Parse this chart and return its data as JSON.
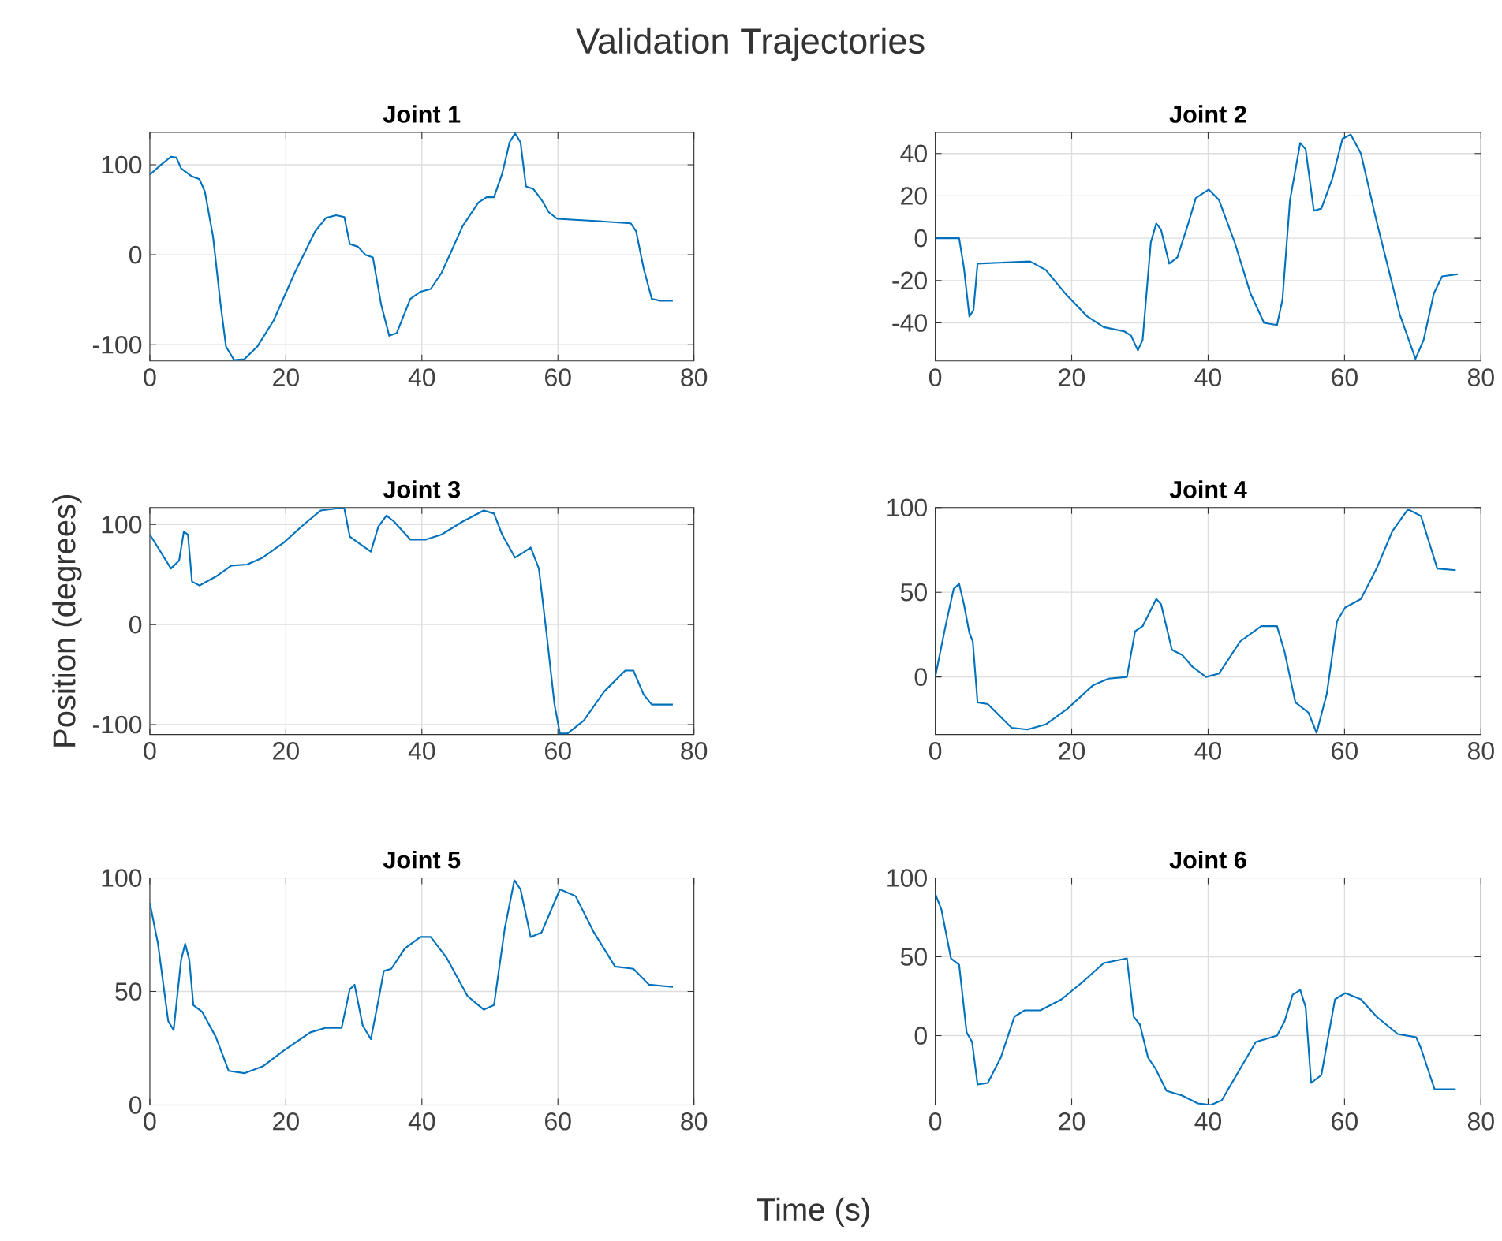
{
  "chart_data": [
    {
      "type": "line",
      "title": "Joint  1",
      "annotations": [
        "Validation Trajectories"
      ],
      "xlim": [
        0,
        80
      ],
      "xticks": [
        0,
        20,
        40,
        60,
        80
      ],
      "ylim": [
        -118,
        136
      ],
      "yticks": [
        -100,
        0,
        100
      ],
      "grid": true,
      "series": [
        {
          "color": "#0072bd",
          "x": [
            0,
            1.5,
            3.1,
            3.9,
            4.6,
            6.2,
            7.3,
            8.1,
            9.3,
            10.4,
            11.2,
            12.4,
            13.9,
            15.8,
            18.2,
            21.3,
            24.3,
            25.9,
            27.4,
            28.6,
            29.4,
            30.6,
            31.7,
            32.8,
            34,
            35.2,
            36.3,
            38.3,
            39.8,
            41.3,
            42.9,
            46,
            48.3,
            49.5,
            50.6,
            51.8,
            52.9,
            53.7,
            54.5,
            55.3,
            56.4,
            57.6,
            58.7,
            59.9,
            64.5,
            70.7,
            71.5,
            72.6,
            73.8,
            75,
            76.9
          ],
          "values": [
            89,
            99,
            109,
            108,
            96,
            87,
            84,
            70,
            20,
            -55,
            -102,
            -117,
            -116,
            -102,
            -73,
            -20,
            26,
            41,
            44,
            42,
            12,
            9,
            0,
            -3,
            -55,
            -90,
            -87,
            -49,
            -41,
            -38,
            -20,
            32,
            58,
            64,
            64,
            90,
            125,
            135,
            125,
            76,
            73,
            61,
            47,
            40,
            38,
            35,
            26,
            -15,
            -49,
            -51,
            -51
          ]
        }
      ]
    },
    {
      "type": "line",
      "title": "Joint  2",
      "xlim": [
        0,
        80
      ],
      "xticks": [
        0,
        20,
        40,
        60,
        80
      ],
      "ylim": [
        -58,
        50
      ],
      "yticks": [
        -40,
        -20,
        0,
        20,
        40
      ],
      "grid": true,
      "series": [
        {
          "color": "#0072bd",
          "x": [
            0,
            3.5,
            4.2,
            5,
            5.6,
            6.2,
            13.9,
            16.2,
            19.3,
            22.3,
            24.7,
            27.7,
            28.7,
            29.7,
            30.4,
            31.6,
            32.4,
            33.1,
            34.3,
            35.5,
            37,
            38.2,
            40.1,
            41.6,
            43.9,
            46.2,
            48.2,
            50.1,
            50.9,
            52,
            53.5,
            54.3,
            55.5,
            56.6,
            58.2,
            59.7,
            60.9,
            62.4,
            64.7,
            68.1,
            70.4,
            71.6,
            73.1,
            74.3,
            76.6
          ],
          "values": [
            0,
            0,
            -14,
            -37,
            -34,
            -12,
            -11,
            -15,
            -27,
            -37,
            -42,
            -44,
            -46,
            -53,
            -48,
            -2,
            7,
            4,
            -12,
            -9,
            6,
            19,
            23,
            18,
            -2,
            -26,
            -40,
            -41,
            -29,
            18,
            45,
            42,
            13,
            14,
            28,
            47,
            49,
            40,
            8,
            -36,
            -57,
            -48,
            -26,
            -18,
            -17
          ]
        }
      ]
    },
    {
      "type": "line",
      "title": "Joint  3",
      "ylabel": "Position (degrees)",
      "xlim": [
        0,
        80
      ],
      "xticks": [
        0,
        20,
        40,
        60,
        80
      ],
      "ylim": [
        -110,
        117
      ],
      "yticks": [
        -100,
        0,
        100
      ],
      "grid": true,
      "series": [
        {
          "color": "#0072bd",
          "x": [
            0,
            1.2,
            3.1,
            4.3,
            5,
            5.6,
            6.2,
            7.3,
            9.7,
            12,
            14.3,
            16.6,
            19.7,
            22.8,
            25.1,
            27.4,
            28.6,
            29.4,
            30.6,
            32.5,
            33.6,
            34.8,
            35.9,
            38.3,
            40.6,
            42.9,
            46,
            49.1,
            50.6,
            51.8,
            53.7,
            54.9,
            56,
            57.2,
            58.3,
            59.5,
            60.3,
            61.4,
            63.8,
            66.8,
            69.9,
            71.1,
            72.6,
            73.8,
            76.9
          ],
          "values": [
            90,
            77,
            56,
            64,
            93,
            90,
            43,
            39,
            48,
            59,
            60,
            67,
            82,
            101,
            114,
            116,
            116,
            88,
            82,
            73,
            98,
            109,
            103,
            85,
            85,
            90,
            103,
            114,
            111,
            90,
            67,
            72,
            77,
            56,
            -7,
            -80,
            -109,
            -109,
            -96,
            -67,
            -46,
            -46,
            -70,
            -80,
            -80
          ]
        }
      ]
    },
    {
      "type": "line",
      "title": "Joint  4",
      "xlim": [
        0,
        80
      ],
      "xticks": [
        0,
        20,
        40,
        60,
        80
      ],
      "ylim": [
        -34,
        100
      ],
      "yticks": [
        0,
        50,
        100
      ],
      "grid": true,
      "series": [
        {
          "color": "#0072bd",
          "x": [
            0,
            1.5,
            2.7,
            3.5,
            4.2,
            5,
            5.5,
            6.2,
            7.7,
            9.2,
            11.2,
            13.5,
            16.2,
            19.3,
            23.1,
            25.4,
            28.1,
            29.3,
            30.4,
            32.4,
            33.1,
            34.7,
            36.2,
            37.7,
            39.7,
            41.6,
            44.7,
            47.8,
            50.1,
            51.2,
            52.8,
            54.7,
            55.9,
            57.4,
            58.9,
            60.1,
            62.4,
            64.7,
            67,
            69.3,
            71.2,
            73.6,
            76.3
          ],
          "values": [
            0,
            30,
            52,
            55,
            43,
            26,
            21,
            -15,
            -16,
            -22,
            -30,
            -31,
            -28,
            -19,
            -5,
            -1,
            0,
            27,
            30,
            46,
            43,
            16,
            13,
            6,
            0,
            2,
            21,
            30,
            30,
            15,
            -15,
            -21,
            -33,
            -10,
            33,
            41,
            46,
            64,
            86,
            99,
            95,
            64,
            63
          ]
        }
      ]
    },
    {
      "type": "line",
      "title": "Joint  5",
      "xlabel": "Time (s)",
      "xlim": [
        0,
        80
      ],
      "xticks": [
        0,
        20,
        40,
        60,
        80
      ],
      "ylim": [
        0,
        100
      ],
      "yticks": [
        0,
        50,
        100
      ],
      "grid": true,
      "series": [
        {
          "color": "#0072bd",
          "x": [
            0,
            1.2,
            2.7,
            3.5,
            4.6,
            5.2,
            5.8,
            6.4,
            7.7,
            9.7,
            11.6,
            13.9,
            16.6,
            19.7,
            23.6,
            25.9,
            28.2,
            29.4,
            30.1,
            31.3,
            32.5,
            33.6,
            34.4,
            35.5,
            37.5,
            39.8,
            41.3,
            43.6,
            46.7,
            49.1,
            50.6,
            52.2,
            53.6,
            54.5,
            56,
            57.6,
            60.3,
            62.6,
            65.3,
            68.4,
            71.1,
            73.4,
            76.9
          ],
          "values": [
            89,
            71,
            37,
            33,
            64,
            71,
            64,
            44,
            41,
            30,
            15,
            14,
            17,
            24,
            32,
            34,
            34,
            51,
            53,
            35,
            29,
            46,
            59,
            60,
            69,
            74,
            74,
            65,
            48,
            42,
            44,
            78,
            99,
            95,
            74,
            76,
            95,
            92,
            76,
            61,
            60,
            53,
            52
          ]
        }
      ]
    },
    {
      "type": "line",
      "title": "Joint  6",
      "xlim": [
        0,
        80
      ],
      "xticks": [
        0,
        20,
        40,
        60,
        80
      ],
      "ylim": [
        -44,
        100
      ],
      "yticks": [
        0,
        50,
        100
      ],
      "grid": true,
      "series": [
        {
          "color": "#0072bd",
          "x": [
            0,
            0.9,
            2.3,
            3.5,
            4.6,
            5.4,
            6.2,
            7.7,
            9.6,
            11.6,
            13.1,
            15.4,
            18.5,
            21.6,
            24.7,
            28.1,
            29.1,
            30,
            31.2,
            32.3,
            33.9,
            36.2,
            38.5,
            40.4,
            42,
            44.7,
            47,
            50.1,
            51.2,
            52.4,
            53.5,
            54.3,
            55.1,
            56.6,
            58.6,
            60.1,
            62.4,
            64.7,
            67.8,
            70.5,
            71.2,
            73.2,
            76.3
          ],
          "values": [
            90,
            80,
            49,
            45,
            2,
            -4,
            -31,
            -30,
            -14,
            12,
            16,
            16,
            23,
            34,
            46,
            49,
            12,
            7,
            -14,
            -21,
            -35,
            -38,
            -43,
            -44,
            -41,
            -21,
            -4,
            0,
            9,
            26,
            29,
            18,
            -30,
            -25,
            23,
            27,
            23,
            12,
            1,
            -1,
            -8,
            -34,
            -34
          ]
        }
      ]
    }
  ]
}
